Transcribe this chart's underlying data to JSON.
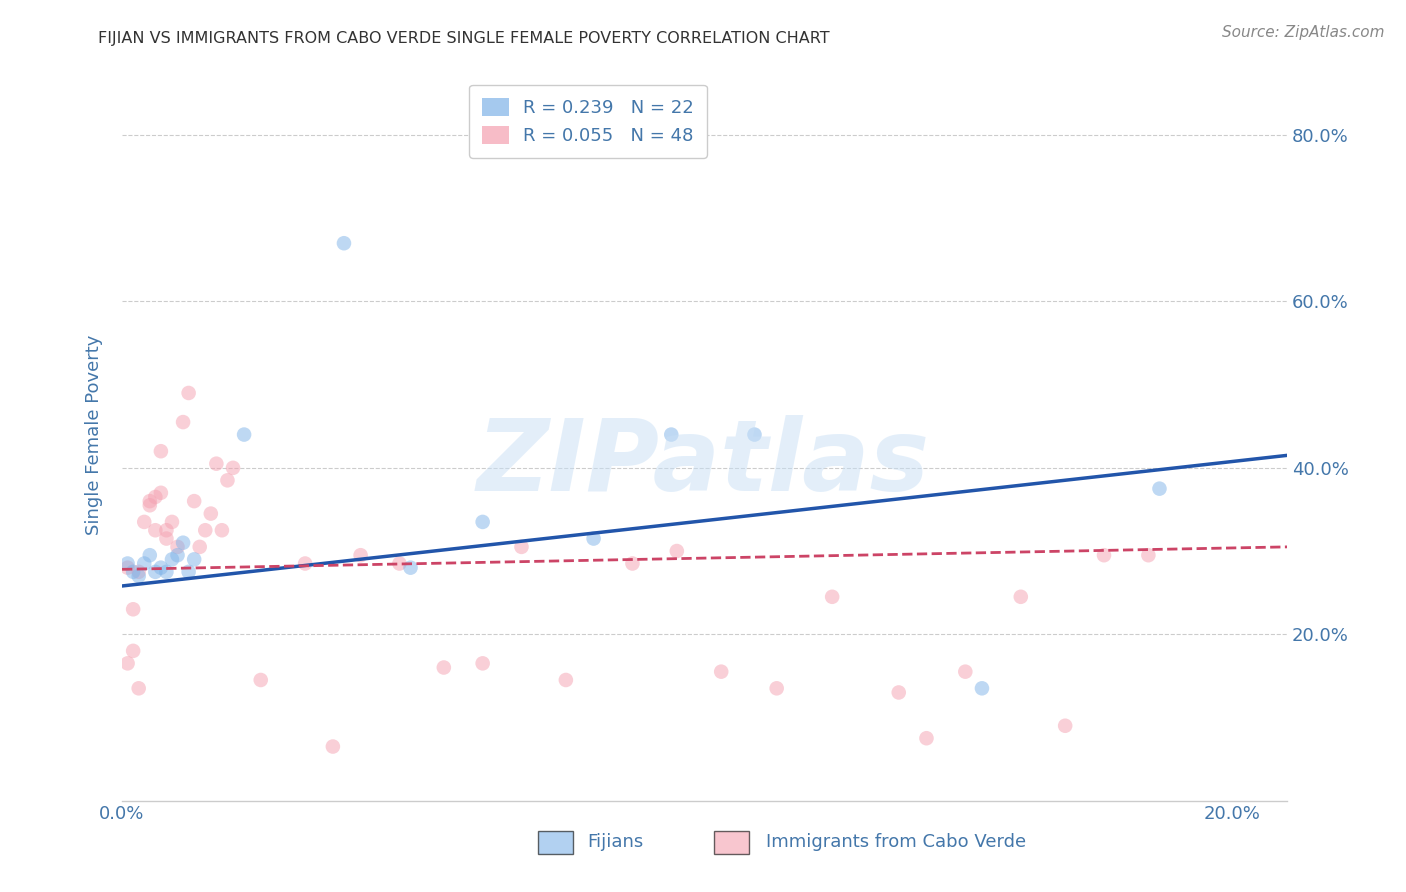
{
  "title": "FIJIAN VS IMMIGRANTS FROM CABO VERDE SINGLE FEMALE POVERTY CORRELATION CHART",
  "source": "Source: ZipAtlas.com",
  "ylabel_label": "Single Female Poverty",
  "y_tick_labels": [
    "80.0%",
    "60.0%",
    "40.0%",
    "20.0%"
  ],
  "y_tick_positions": [
    0.8,
    0.6,
    0.4,
    0.2
  ],
  "xlim": [
    0.0,
    0.21
  ],
  "ylim": [
    0.0,
    0.88
  ],
  "legend_entries": [
    {
      "label": "R = 0.239   N = 22",
      "color": "#7fb3e8"
    },
    {
      "label": "R = 0.055   N = 48",
      "color": "#f4a0b0"
    }
  ],
  "fijian_scatter_x": [
    0.001,
    0.002,
    0.003,
    0.004,
    0.005,
    0.006,
    0.007,
    0.008,
    0.009,
    0.01,
    0.011,
    0.012,
    0.013,
    0.022,
    0.04,
    0.052,
    0.065,
    0.085,
    0.099,
    0.114,
    0.155,
    0.187
  ],
  "fijian_scatter_y": [
    0.285,
    0.275,
    0.27,
    0.285,
    0.295,
    0.275,
    0.28,
    0.275,
    0.29,
    0.295,
    0.31,
    0.275,
    0.29,
    0.44,
    0.67,
    0.28,
    0.335,
    0.315,
    0.44,
    0.44,
    0.135,
    0.375
  ],
  "cabo_scatter_x": [
    0.001,
    0.001,
    0.002,
    0.002,
    0.003,
    0.003,
    0.004,
    0.005,
    0.005,
    0.006,
    0.006,
    0.007,
    0.007,
    0.008,
    0.008,
    0.009,
    0.01,
    0.011,
    0.012,
    0.013,
    0.014,
    0.015,
    0.016,
    0.017,
    0.018,
    0.019,
    0.02,
    0.025,
    0.033,
    0.038,
    0.043,
    0.05,
    0.058,
    0.065,
    0.072,
    0.08,
    0.092,
    0.1,
    0.108,
    0.118,
    0.128,
    0.14,
    0.145,
    0.152,
    0.162,
    0.17,
    0.177,
    0.185
  ],
  "cabo_scatter_y": [
    0.28,
    0.165,
    0.18,
    0.23,
    0.135,
    0.275,
    0.335,
    0.36,
    0.355,
    0.325,
    0.365,
    0.37,
    0.42,
    0.315,
    0.325,
    0.335,
    0.305,
    0.455,
    0.49,
    0.36,
    0.305,
    0.325,
    0.345,
    0.405,
    0.325,
    0.385,
    0.4,
    0.145,
    0.285,
    0.065,
    0.295,
    0.285,
    0.16,
    0.165,
    0.305,
    0.145,
    0.285,
    0.3,
    0.155,
    0.135,
    0.245,
    0.13,
    0.075,
    0.155,
    0.245,
    0.09,
    0.295,
    0.295
  ],
  "fijian_line_x": [
    0.0,
    0.21
  ],
  "fijian_line_y": [
    0.258,
    0.415
  ],
  "cabo_line_x": [
    0.0,
    0.21
  ],
  "cabo_line_y": [
    0.278,
    0.305
  ],
  "background_color": "#ffffff",
  "scatter_alpha": 0.5,
  "scatter_size": 110,
  "fijian_color": "#7fb3e8",
  "cabo_color": "#f4a0b0",
  "line_fijian_color": "#2255aa",
  "line_cabo_color": "#cc4466",
  "grid_color": "#cccccc",
  "title_color": "#333333",
  "axis_label_color": "#4477aa",
  "tick_color": "#4477aa",
  "watermark_text": "ZIPatlas",
  "watermark_color": "#c8dff5",
  "watermark_alpha": 0.5
}
